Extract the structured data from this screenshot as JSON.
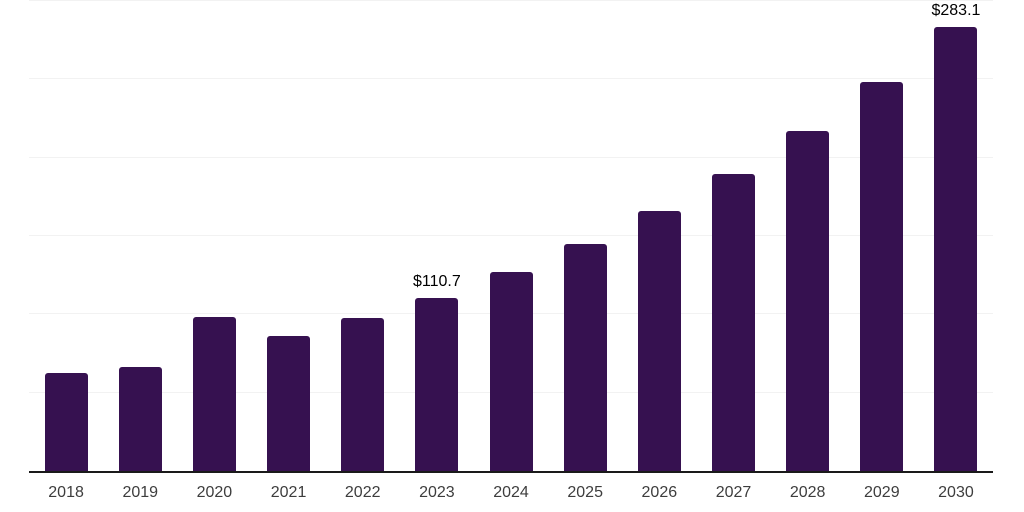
{
  "chart_data": {
    "type": "bar",
    "title": "",
    "xlabel": "",
    "ylabel": "",
    "categories": [
      "2018",
      "2019",
      "2020",
      "2021",
      "2022",
      "2023",
      "2024",
      "2025",
      "2026",
      "2027",
      "2028",
      "2029",
      "2030"
    ],
    "values": [
      62.4,
      66.4,
      98.3,
      86.4,
      97.9,
      110.7,
      126.9,
      145.1,
      165.9,
      189.7,
      216.9,
      248.0,
      283.1
    ],
    "data_labels": {
      "2023": "$110.7",
      "2030": "$283.1"
    },
    "ylim": [
      0,
      300
    ],
    "gridline_step": 50,
    "grid": true,
    "legend": false,
    "colors": {
      "bar": "#361150",
      "gridline": "#f2f2f2",
      "axis_line": "#1a1a1a",
      "tick_label": "#3d3d3d",
      "data_label": "#000000",
      "background": "#ffffff"
    }
  }
}
